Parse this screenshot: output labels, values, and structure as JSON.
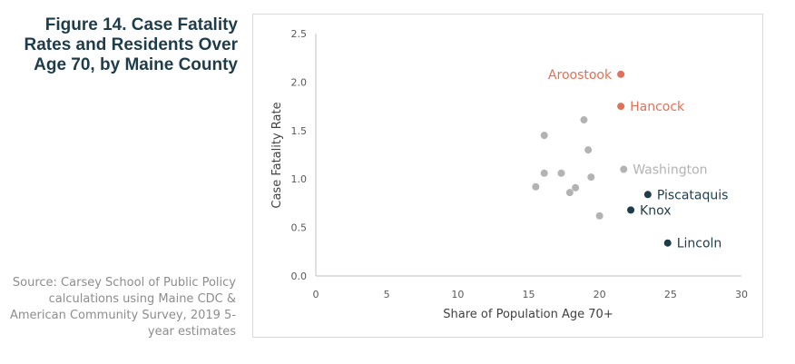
{
  "figure": {
    "title": "Figure 14. Case Fatality Rates and Residents Over Age 70, by Maine County",
    "source": "Source: Carsey School of Public Policy calculations using Maine CDC & American Community Survey, 2019 5-year estimates"
  },
  "colors": {
    "highlight_orange": "#e07158",
    "highlight_dark": "#1f3c4a",
    "muted_gray": "#b3b3b3"
  },
  "chart_data": {
    "type": "scatter",
    "xlabel": "Share of Population Age 70+",
    "ylabel": "Case Fatality Rate",
    "xlim": [
      0,
      30
    ],
    "ylim": [
      0,
      2.5
    ],
    "xticks": [
      0,
      5,
      10,
      15,
      20,
      25,
      30
    ],
    "yticks": [
      0.0,
      0.5,
      1.0,
      1.5,
      2.0,
      2.5
    ],
    "ytick_labels": [
      "0.0",
      "0.5",
      "1.0",
      "1.5",
      "2.0",
      "2.5"
    ],
    "grid": false,
    "points": [
      {
        "x": 21.5,
        "y": 2.08,
        "label": "Aroostook",
        "group": "orange",
        "label_side": "left"
      },
      {
        "x": 21.5,
        "y": 1.75,
        "label": "Hancock",
        "group": "orange",
        "label_side": "right"
      },
      {
        "x": 21.7,
        "y": 1.1,
        "label": "Washington",
        "group": "gray",
        "label_side": "right"
      },
      {
        "x": 23.4,
        "y": 0.84,
        "label": "Piscataquis",
        "group": "dark",
        "label_side": "right"
      },
      {
        "x": 22.2,
        "y": 0.68,
        "label": "Knox",
        "group": "dark",
        "label_side": "right"
      },
      {
        "x": 24.8,
        "y": 0.34,
        "label": "Lincoln",
        "group": "dark",
        "label_side": "right"
      },
      {
        "x": 18.9,
        "y": 1.61,
        "label": "",
        "group": "gray"
      },
      {
        "x": 16.1,
        "y": 1.45,
        "label": "",
        "group": "gray"
      },
      {
        "x": 19.2,
        "y": 1.3,
        "label": "",
        "group": "gray"
      },
      {
        "x": 16.1,
        "y": 1.06,
        "label": "",
        "group": "gray"
      },
      {
        "x": 17.3,
        "y": 1.06,
        "label": "",
        "group": "gray"
      },
      {
        "x": 19.4,
        "y": 1.02,
        "label": "",
        "group": "gray"
      },
      {
        "x": 15.5,
        "y": 0.92,
        "label": "",
        "group": "gray"
      },
      {
        "x": 18.3,
        "y": 0.91,
        "label": "",
        "group": "gray"
      },
      {
        "x": 17.9,
        "y": 0.86,
        "label": "",
        "group": "gray"
      },
      {
        "x": 20.0,
        "y": 0.62,
        "label": "",
        "group": "gray"
      }
    ]
  }
}
